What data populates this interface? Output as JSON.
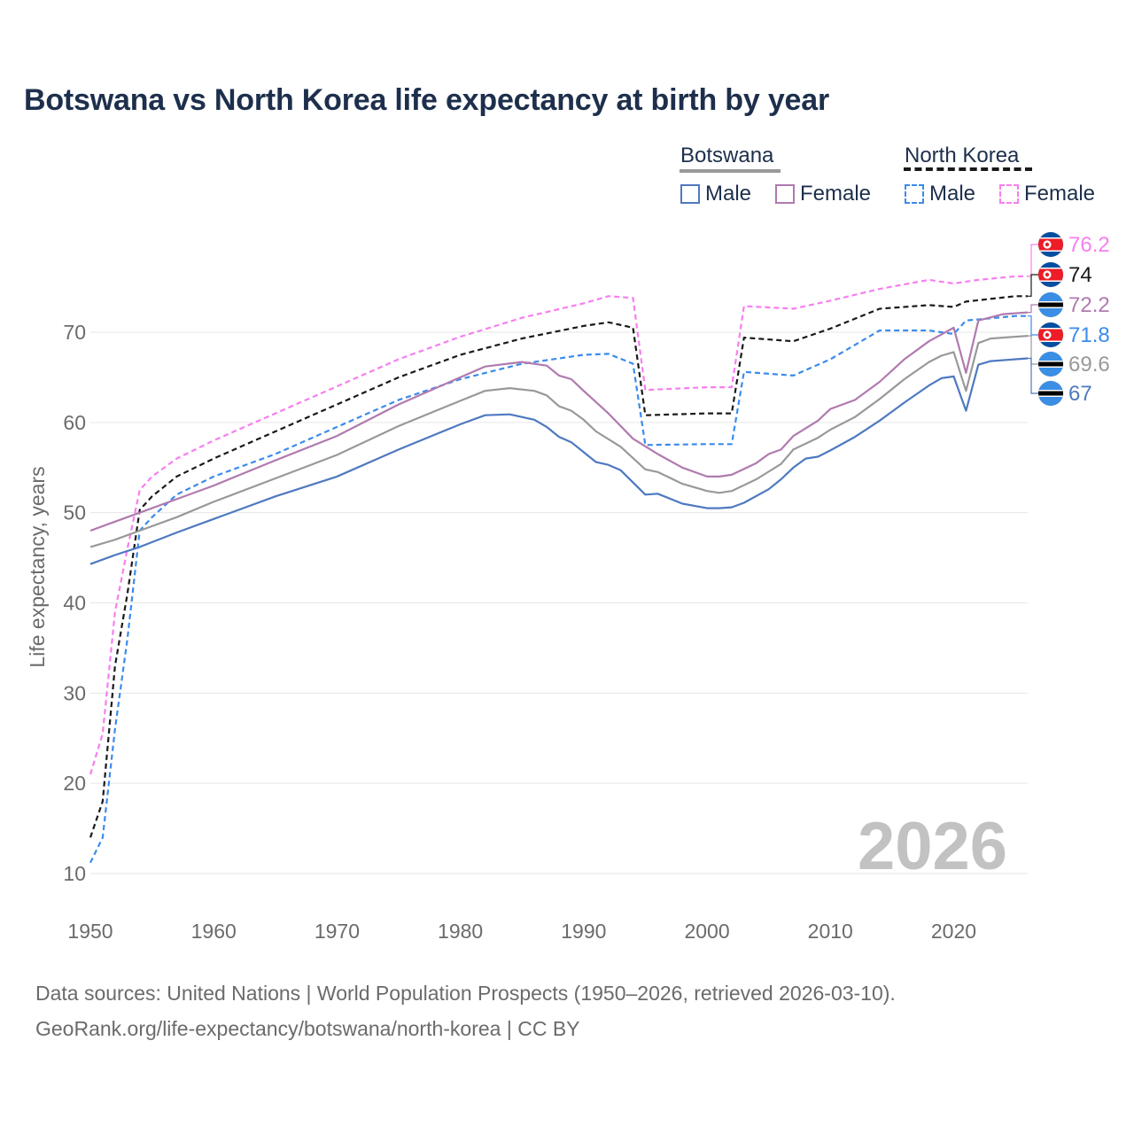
{
  "title": "Botswana vs North Korea life expectancy at birth by year",
  "legend": {
    "botswana": {
      "label": "Botswana",
      "male": "Male",
      "female": "Female"
    },
    "north_korea": {
      "label": "North Korea",
      "male": "Male",
      "female": "Female"
    }
  },
  "source": {
    "line1": "Data sources: United Nations | World Population Prospects (1950–2026, retrieved 2026-03-10).",
    "line2": "GeoRank.org/life-expectancy/botswana/north-korea | CC BY"
  },
  "year_watermark": "2026",
  "colors": {
    "bw_total": "#999999",
    "bw_male": "#4e79c0",
    "bw_female": "#b07aaf",
    "nk_total": "#1a1a1a",
    "nk_male": "#3b8beb",
    "nk_female": "#f77ef0",
    "grid": "#e6e6e6",
    "axis_text": "#6b6b6b"
  },
  "chart_data": {
    "type": "line",
    "title": "Botswana vs North Korea life expectancy at birth by year",
    "xlabel": "",
    "ylabel": "Life expectancy, years",
    "xlim": [
      1950,
      2026
    ],
    "ylim": [
      9,
      78
    ],
    "x_ticks": [
      1950,
      1960,
      1970,
      1980,
      1990,
      2000,
      2010,
      2020
    ],
    "y_ticks": [
      10,
      20,
      30,
      40,
      50,
      60,
      70
    ],
    "series": [
      {
        "name": "North Korea Female",
        "key": "nk_female",
        "style": "dashed",
        "points": [
          [
            1950,
            21
          ],
          [
            1951,
            25.5
          ],
          [
            1952,
            39
          ],
          [
            1953,
            46
          ],
          [
            1954,
            52.5
          ],
          [
            1955,
            54
          ],
          [
            1957,
            56
          ],
          [
            1960,
            58
          ],
          [
            1965,
            61
          ],
          [
            1970,
            64
          ],
          [
            1975,
            67
          ],
          [
            1980,
            69.5
          ],
          [
            1985,
            71.6
          ],
          [
            1990,
            73.2
          ],
          [
            1992,
            74
          ],
          [
            1994,
            73.8
          ],
          [
            1995,
            63.6
          ],
          [
            2000,
            63.9
          ],
          [
            2002,
            63.9
          ],
          [
            2003,
            72.9
          ],
          [
            2007,
            72.6
          ],
          [
            2010,
            73.5
          ],
          [
            2014,
            74.8
          ],
          [
            2018,
            75.8
          ],
          [
            2020,
            75.4
          ],
          [
            2022,
            75.8
          ],
          [
            2025,
            76.2
          ],
          [
            2026,
            76.2
          ]
        ]
      },
      {
        "name": "North Korea",
        "key": "nk_total",
        "style": "dashed",
        "points": [
          [
            1950,
            14
          ],
          [
            1951,
            18
          ],
          [
            1952,
            33
          ],
          [
            1953,
            41
          ],
          [
            1954,
            50.3
          ],
          [
            1955,
            51.8
          ],
          [
            1957,
            54
          ],
          [
            1960,
            56
          ],
          [
            1965,
            59
          ],
          [
            1970,
            62
          ],
          [
            1975,
            65
          ],
          [
            1980,
            67.5
          ],
          [
            1985,
            69.3
          ],
          [
            1990,
            70.7
          ],
          [
            1992,
            71.1
          ],
          [
            1994,
            70.5
          ],
          [
            1995,
            60.8
          ],
          [
            2000,
            61
          ],
          [
            2002,
            61
          ],
          [
            2003,
            69.4
          ],
          [
            2007,
            69
          ],
          [
            2010,
            70.4
          ],
          [
            2014,
            72.6
          ],
          [
            2018,
            73
          ],
          [
            2020,
            72.8
          ],
          [
            2021,
            73.4
          ],
          [
            2025,
            74
          ],
          [
            2026,
            74
          ]
        ]
      },
      {
        "name": "North Korea Male",
        "key": "nk_male",
        "style": "dashed",
        "points": [
          [
            1950,
            11.2
          ],
          [
            1951,
            14
          ],
          [
            1952,
            26
          ],
          [
            1953,
            36
          ],
          [
            1954,
            48
          ],
          [
            1955,
            49.5
          ],
          [
            1957,
            52
          ],
          [
            1960,
            54
          ],
          [
            1965,
            56.5
          ],
          [
            1970,
            59.5
          ],
          [
            1975,
            62.5
          ],
          [
            1980,
            64.8
          ],
          [
            1985,
            66.5
          ],
          [
            1990,
            67.5
          ],
          [
            1992,
            67.6
          ],
          [
            1994,
            66.5
          ],
          [
            1995,
            57.5
          ],
          [
            2000,
            57.6
          ],
          [
            2002,
            57.6
          ],
          [
            2003,
            65.6
          ],
          [
            2007,
            65.2
          ],
          [
            2010,
            67
          ],
          [
            2014,
            70.2
          ],
          [
            2018,
            70.2
          ],
          [
            2020,
            69.8
          ],
          [
            2021,
            71.3
          ],
          [
            2025,
            71.8
          ],
          [
            2026,
            71.8
          ]
        ]
      },
      {
        "name": "Botswana Female",
        "key": "bw_female",
        "style": "solid",
        "points": [
          [
            1950,
            48
          ],
          [
            1952,
            49
          ],
          [
            1954,
            50
          ],
          [
            1957,
            51.5
          ],
          [
            1960,
            53
          ],
          [
            1965,
            55.8
          ],
          [
            1970,
            58.5
          ],
          [
            1975,
            62
          ],
          [
            1980,
            65
          ],
          [
            1982,
            66.2
          ],
          [
            1985,
            66.7
          ],
          [
            1987,
            66.3
          ],
          [
            1988,
            65.2
          ],
          [
            1989,
            64.8
          ],
          [
            1990,
            63.5
          ],
          [
            1992,
            61
          ],
          [
            1994,
            58.2
          ],
          [
            1996,
            56.5
          ],
          [
            1998,
            55
          ],
          [
            2000,
            54
          ],
          [
            2001,
            54
          ],
          [
            2002,
            54.2
          ],
          [
            2004,
            55.5
          ],
          [
            2005,
            56.5
          ],
          [
            2006,
            57
          ],
          [
            2007,
            58.5
          ],
          [
            2009,
            60.2
          ],
          [
            2010,
            61.5
          ],
          [
            2012,
            62.5
          ],
          [
            2014,
            64.5
          ],
          [
            2016,
            67
          ],
          [
            2018,
            69
          ],
          [
            2020,
            70.5
          ],
          [
            2021,
            65.5
          ],
          [
            2022,
            71.3
          ],
          [
            2024,
            72
          ],
          [
            2026,
            72.2
          ]
        ]
      },
      {
        "name": "Botswana",
        "key": "bw_total",
        "style": "solid",
        "points": [
          [
            1950,
            46.2
          ],
          [
            1952,
            47
          ],
          [
            1954,
            48
          ],
          [
            1957,
            49.5
          ],
          [
            1960,
            51.2
          ],
          [
            1965,
            53.8
          ],
          [
            1970,
            56.4
          ],
          [
            1975,
            59.6
          ],
          [
            1980,
            62.4
          ],
          [
            1982,
            63.5
          ],
          [
            1984,
            63.8
          ],
          [
            1986,
            63.5
          ],
          [
            1987,
            63
          ],
          [
            1988,
            61.8
          ],
          [
            1989,
            61.3
          ],
          [
            1990,
            60.3
          ],
          [
            1991,
            59
          ],
          [
            1993,
            57.3
          ],
          [
            1995,
            54.8
          ],
          [
            1996,
            54.5
          ],
          [
            1998,
            53.2
          ],
          [
            2000,
            52.4
          ],
          [
            2001,
            52.2
          ],
          [
            2002,
            52.4
          ],
          [
            2004,
            53.7
          ],
          [
            2006,
            55.4
          ],
          [
            2007,
            57
          ],
          [
            2009,
            58.3
          ],
          [
            2010,
            59.2
          ],
          [
            2012,
            60.6
          ],
          [
            2014,
            62.6
          ],
          [
            2016,
            64.8
          ],
          [
            2018,
            66.7
          ],
          [
            2019,
            67.4
          ],
          [
            2020,
            67.8
          ],
          [
            2021,
            63.5
          ],
          [
            2022,
            68.8
          ],
          [
            2023,
            69.3
          ],
          [
            2026,
            69.6
          ]
        ]
      },
      {
        "name": "Botswana Male",
        "key": "bw_male",
        "style": "solid",
        "points": [
          [
            1950,
            44.3
          ],
          [
            1952,
            45.3
          ],
          [
            1954,
            46.2
          ],
          [
            1957,
            47.8
          ],
          [
            1960,
            49.3
          ],
          [
            1965,
            51.8
          ],
          [
            1970,
            54
          ],
          [
            1975,
            57
          ],
          [
            1980,
            59.8
          ],
          [
            1982,
            60.8
          ],
          [
            1984,
            60.9
          ],
          [
            1986,
            60.3
          ],
          [
            1987,
            59.5
          ],
          [
            1988,
            58.4
          ],
          [
            1989,
            57.8
          ],
          [
            1991,
            55.6
          ],
          [
            1992,
            55.3
          ],
          [
            1993,
            54.7
          ],
          [
            1995,
            52
          ],
          [
            1996,
            52.1
          ],
          [
            1998,
            51
          ],
          [
            2000,
            50.5
          ],
          [
            2001,
            50.5
          ],
          [
            2002,
            50.6
          ],
          [
            2003,
            51.1
          ],
          [
            2005,
            52.6
          ],
          [
            2006,
            53.7
          ],
          [
            2007,
            55
          ],
          [
            2008,
            56
          ],
          [
            2009,
            56.2
          ],
          [
            2010,
            56.9
          ],
          [
            2012,
            58.4
          ],
          [
            2014,
            60.2
          ],
          [
            2016,
            62.2
          ],
          [
            2018,
            64.1
          ],
          [
            2019,
            64.9
          ],
          [
            2020,
            65.1
          ],
          [
            2021,
            61.3
          ],
          [
            2022,
            66.4
          ],
          [
            2023,
            66.8
          ],
          [
            2026,
            67.1
          ]
        ]
      }
    ],
    "end_labels": [
      {
        "series": "North Korea Female",
        "key": "nk_female",
        "text": "76.2",
        "flag": "north-korea"
      },
      {
        "series": "North Korea",
        "key": "nk_total",
        "text": "74",
        "flag": "north-korea"
      },
      {
        "series": "Botswana Female",
        "key": "bw_female",
        "text": "72.2",
        "flag": "botswana"
      },
      {
        "series": "North Korea Male",
        "key": "nk_male",
        "text": "71.8",
        "flag": "north-korea"
      },
      {
        "series": "Botswana",
        "key": "bw_total",
        "text": "69.6",
        "flag": "botswana"
      },
      {
        "series": "Botswana Male",
        "key": "bw_male",
        "text": "67",
        "flag": "botswana"
      }
    ]
  }
}
